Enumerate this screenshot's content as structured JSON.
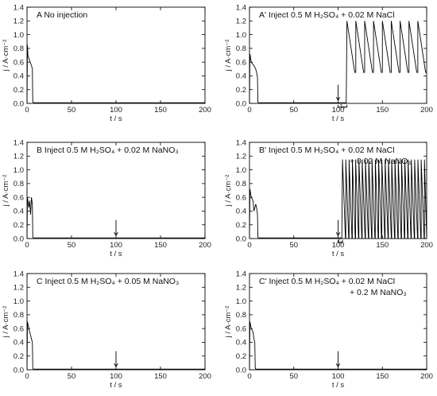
{
  "chart_data": [
    {
      "id": "A",
      "type": "line",
      "title": "A  No injection",
      "xlabel": "t / s",
      "ylabel": "j / A·cm⁻²",
      "xlim": [
        0,
        200
      ],
      "ylim": [
        0,
        1.4
      ],
      "xticks": [
        "0",
        "50",
        "100",
        "150",
        "200"
      ],
      "yticks": [
        "0.0",
        "0.2",
        "0.4",
        "0.6",
        "0.8",
        "1.0",
        "1.2",
        "1.4"
      ],
      "injection_time": null,
      "series": [
        {
          "x": [
            0,
            0.5,
            1,
            3,
            5,
            6,
            6.5,
            7,
            200
          ],
          "y": [
            0.0,
            0.85,
            0.7,
            0.62,
            0.55,
            0.5,
            0.02,
            0.01,
            0.01
          ]
        }
      ]
    },
    {
      "id": "A'",
      "type": "line",
      "title": "A' Inject  0.5 M H₂SO₄ + 0.02 M NaCl",
      "xlabel": "t / s",
      "ylabel": "j / A·cm⁻²",
      "xlim": [
        0,
        200
      ],
      "ylim": [
        0,
        1.4
      ],
      "xticks": [
        "0",
        "50",
        "100",
        "150",
        "200"
      ],
      "yticks": [
        "0.0",
        "0.2",
        "0.4",
        "0.6",
        "0.8",
        "1.0",
        "1.2",
        "1.4"
      ],
      "injection_time": 100,
      "annotation": "τ₀",
      "oscillation": {
        "start": 110,
        "end": 200,
        "period": 10,
        "peak": 1.2,
        "trough": 0.45,
        "base": 0.01
      },
      "series": [
        {
          "x": [
            0,
            0.5,
            2,
            5,
            7,
            8,
            9,
            9.5,
            10
          ],
          "y": [
            0.0,
            0.72,
            0.6,
            0.55,
            0.5,
            0.45,
            0.38,
            0.02,
            0.01
          ]
        }
      ]
    },
    {
      "id": "B",
      "type": "line",
      "title": "B  Inject  0.5 M H₂SO₄ + 0.02 M NaNO₃",
      "xlabel": "t / s",
      "ylabel": "j / A·cm⁻²",
      "xlim": [
        0,
        200
      ],
      "ylim": [
        0,
        1.4
      ],
      "xticks": [
        "0",
        "50",
        "100",
        "150",
        "200"
      ],
      "yticks": [
        "0.0",
        "0.2",
        "0.4",
        "0.6",
        "0.8",
        "1.0",
        "1.2",
        "1.4"
      ],
      "injection_time": 100,
      "series": [
        {
          "x": [
            0,
            0.5,
            2,
            3,
            4,
            5,
            6,
            6.5,
            7,
            200
          ],
          "y": [
            0.0,
            0.6,
            0.45,
            0.55,
            0.35,
            0.6,
            0.5,
            0.02,
            0.01,
            0.01
          ]
        }
      ]
    },
    {
      "id": "B'",
      "type": "line",
      "title_lines": [
        "B' Inject  0.5 M H₂SO₄ + 0.02 M NaCl",
        "+ 0.02 M NaNO₃"
      ],
      "xlabel": "t / s",
      "ylabel": "j / A·cm⁻²",
      "xlim": [
        0,
        200
      ],
      "ylim": [
        0,
        1.4
      ],
      "xticks": [
        "0",
        "50",
        "100",
        "150",
        "200"
      ],
      "yticks": [
        "0.0",
        "0.2",
        "0.4",
        "0.6",
        "0.8",
        "1.0",
        "1.2",
        "1.4"
      ],
      "injection_time": 100,
      "annotation": "τ₀",
      "oscillation": {
        "start": 105,
        "end": 200,
        "period": 3.7,
        "peak": 1.15,
        "trough": 0.01,
        "base": 0.01
      },
      "series": [
        {
          "x": [
            0,
            0.5,
            2,
            4,
            5,
            7,
            8,
            9,
            9.5,
            10
          ],
          "y": [
            0.0,
            0.72,
            0.6,
            0.55,
            0.4,
            0.5,
            0.45,
            0.35,
            0.02,
            0.01
          ]
        }
      ]
    },
    {
      "id": "C",
      "type": "line",
      "title": "C  Inject  0.5 M H₂SO₄ + 0.05 M NaNO₃",
      "xlabel": "t / s",
      "ylabel": "j / A·cm⁻²",
      "xlim": [
        0,
        200
      ],
      "ylim": [
        0,
        1.4
      ],
      "xticks": [
        "0",
        "50",
        "100",
        "150",
        "200"
      ],
      "yticks": [
        "0.0",
        "0.2",
        "0.4",
        "0.6",
        "0.8",
        "1.0",
        "1.2",
        "1.4"
      ],
      "injection_time": 100,
      "series": [
        {
          "x": [
            0,
            0.5,
            2,
            4,
            5,
            6,
            6.5,
            7,
            200
          ],
          "y": [
            0.0,
            0.7,
            0.6,
            0.5,
            0.45,
            0.4,
            0.02,
            0.01,
            0.01
          ]
        }
      ]
    },
    {
      "id": "C'",
      "type": "line",
      "title_lines": [
        "C' Inject  0.5 M H₂SO₄ + 0.02 M NaCl",
        "+ 0.2 M NaNO₃"
      ],
      "xlabel": "t / s",
      "ylabel": "j / A·cm⁻²",
      "xlim": [
        0,
        200
      ],
      "ylim": [
        0,
        1.4
      ],
      "xticks": [
        "0",
        "50",
        "100",
        "150",
        "200"
      ],
      "yticks": [
        "0.0",
        "0.2",
        "0.4",
        "0.6",
        "0.8",
        "1.0",
        "1.2",
        "1.4"
      ],
      "injection_time": 100,
      "series": [
        {
          "x": [
            0,
            0.5,
            2,
            4,
            5,
            6,
            6.5,
            7,
            200
          ],
          "y": [
            0.0,
            0.7,
            0.6,
            0.55,
            0.45,
            0.4,
            0.02,
            0.01,
            0.01
          ]
        }
      ]
    }
  ]
}
